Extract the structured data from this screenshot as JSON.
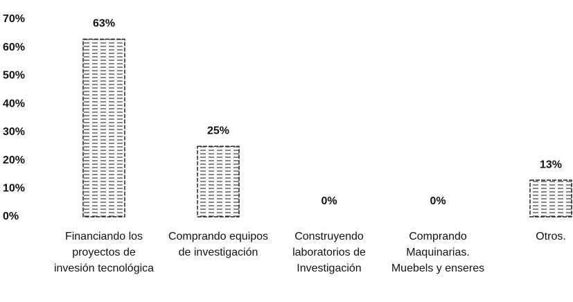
{
  "chart_data": {
    "type": "bar",
    "categories": [
      "Financiando los proyectos de invesión tecnológica",
      "Comprando equipos de investigación",
      "Construyendo laboratorios de Investigación",
      "Comprando Maquinarias. Muebels y enseres",
      "Otros."
    ],
    "values": [
      63,
      25,
      0,
      0,
      13
    ],
    "value_labels": [
      "63%",
      "25%",
      "0%",
      "0%",
      "13%"
    ],
    "color": "#ffffff",
    "ylim": [
      0,
      70
    ],
    "yticks": [
      {
        "value": 0,
        "label": "0%"
      },
      {
        "value": 10,
        "label": "10%"
      },
      {
        "value": 20,
        "label": "20%"
      },
      {
        "value": 30,
        "label": "30%"
      },
      {
        "value": 40,
        "label": "40%"
      },
      {
        "value": 50,
        "label": "50%"
      },
      {
        "value": 60,
        "label": "60%"
      },
      {
        "value": 70,
        "label": "70%"
      }
    ],
    "grid": false
  }
}
